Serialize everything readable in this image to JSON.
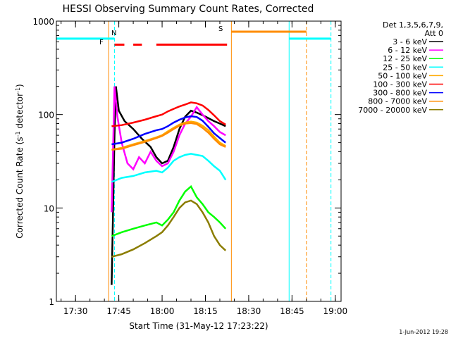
{
  "chart_data": {
    "type": "line",
    "title": "HESSI Observing Summary Count Rates, Corrected",
    "xlabel": "Start Time (31-May-12 17:23:22)",
    "ylabel_main": "Corrected Count Rate (s",
    "ylabel_sup1": "-1",
    "ylabel_mid": " detector",
    "ylabel_sup2": "-1",
    "ylabel_end": ")",
    "y_scale": "log",
    "ylim": [
      1,
      1000
    ],
    "y_ticks": [
      {
        "v": 1,
        "label": "1"
      },
      {
        "v": 10,
        "label": "10"
      },
      {
        "v": 100,
        "label": "100"
      },
      {
        "v": 1000,
        "label": "1000"
      }
    ],
    "xlim": [
      "17:23:22",
      "19:02:00"
    ],
    "x_ticks": [
      "17:30",
      "17:45",
      "18:00",
      "18:15",
      "18:30",
      "18:45",
      "19:00"
    ],
    "legend_header": [
      "Det 1,3,5,6,7,9,",
      "Att 0"
    ],
    "series": [
      {
        "name": "3 - 6 keV",
        "color": "#000000",
        "points": [
          [
            "17:42:30",
            1.5
          ],
          [
            "17:43:30",
            60
          ],
          [
            "17:44:00",
            200
          ],
          [
            "17:45:00",
            110
          ],
          [
            "17:47:00",
            85
          ],
          [
            "17:50:00",
            70
          ],
          [
            "17:53:00",
            55
          ],
          [
            "17:56:00",
            45
          ],
          [
            "17:58:00",
            35
          ],
          [
            "18:00:00",
            30
          ],
          [
            "18:02:00",
            32
          ],
          [
            "18:04:00",
            45
          ],
          [
            "18:06:00",
            70
          ],
          [
            "18:08:00",
            95
          ],
          [
            "18:10:00",
            110
          ],
          [
            "18:12:00",
            105
          ],
          [
            "18:15:00",
            95
          ],
          [
            "18:18:00",
            85
          ],
          [
            "18:20:00",
            80
          ],
          [
            "18:22:00",
            75
          ]
        ]
      },
      {
        "name": "6 - 12 keV",
        "color": "#ff00ff",
        "points": [
          [
            "17:42:30",
            9
          ],
          [
            "17:43:30",
            200
          ],
          [
            "17:44:30",
            95
          ],
          [
            "17:46:00",
            50
          ],
          [
            "17:48:00",
            30
          ],
          [
            "17:50:00",
            26
          ],
          [
            "17:52:00",
            35
          ],
          [
            "17:54:00",
            30
          ],
          [
            "17:56:00",
            40
          ],
          [
            "17:58:00",
            32
          ],
          [
            "18:00:00",
            28
          ],
          [
            "18:02:00",
            30
          ],
          [
            "18:04:00",
            40
          ],
          [
            "18:06:00",
            60
          ],
          [
            "18:08:00",
            80
          ],
          [
            "18:10:00",
            95
          ],
          [
            "18:12:00",
            120
          ],
          [
            "18:14:00",
            100
          ],
          [
            "18:16:00",
            85
          ],
          [
            "18:18:00",
            75
          ],
          [
            "18:20:00",
            65
          ],
          [
            "18:22:00",
            60
          ]
        ]
      },
      {
        "name": "12 - 25 keV",
        "color": "#00ff00",
        "points": [
          [
            "17:42:30",
            5
          ],
          [
            "17:46:00",
            5.5
          ],
          [
            "17:50:00",
            6
          ],
          [
            "17:54:00",
            6.5
          ],
          [
            "17:58:00",
            7
          ],
          [
            "18:00:00",
            6.5
          ],
          [
            "18:02:00",
            7.5
          ],
          [
            "18:04:00",
            9
          ],
          [
            "18:06:00",
            12
          ],
          [
            "18:08:00",
            15
          ],
          [
            "18:10:00",
            17
          ],
          [
            "18:12:00",
            13
          ],
          [
            "18:14:00",
            11
          ],
          [
            "18:16:00",
            9
          ],
          [
            "18:18:00",
            8
          ],
          [
            "18:20:00",
            7
          ],
          [
            "18:22:00",
            6
          ]
        ]
      },
      {
        "name": "25 - 50 keV",
        "color": "#00ffff",
        "points": [
          [
            "17:42:30",
            19
          ],
          [
            "17:46:00",
            21
          ],
          [
            "17:50:00",
            22
          ],
          [
            "17:54:00",
            24
          ],
          [
            "17:58:00",
            25
          ],
          [
            "18:00:00",
            24
          ],
          [
            "18:02:00",
            27
          ],
          [
            "18:04:00",
            32
          ],
          [
            "18:06:00",
            35
          ],
          [
            "18:08:00",
            37
          ],
          [
            "18:10:00",
            38
          ],
          [
            "18:12:00",
            37
          ],
          [
            "18:14:00",
            36
          ],
          [
            "18:16:00",
            32
          ],
          [
            "18:18:00",
            28
          ],
          [
            "18:20:00",
            25
          ],
          [
            "18:22:00",
            20
          ]
        ]
      },
      {
        "name": "50 - 100 keV",
        "color": "#ffaa00",
        "points": [
          [
            "17:42:30",
            42
          ],
          [
            "17:46:00",
            44
          ],
          [
            "17:50:00",
            48
          ],
          [
            "17:54:00",
            52
          ],
          [
            "17:58:00",
            57
          ],
          [
            "18:00:00",
            60
          ],
          [
            "18:02:00",
            66
          ],
          [
            "18:04:00",
            72
          ],
          [
            "18:06:00",
            78
          ],
          [
            "18:08:00",
            82
          ],
          [
            "18:10:00",
            84
          ],
          [
            "18:12:00",
            82
          ],
          [
            "18:14:00",
            76
          ],
          [
            "18:16:00",
            68
          ],
          [
            "18:18:00",
            58
          ],
          [
            "18:20:00",
            50
          ],
          [
            "18:22:00",
            46
          ]
        ]
      },
      {
        "name": "100 - 300 keV",
        "color": "#ff0000",
        "points": [
          [
            "17:42:30",
            75
          ],
          [
            "17:46:00",
            77
          ],
          [
            "17:50:00",
            82
          ],
          [
            "17:54:00",
            88
          ],
          [
            "17:58:00",
            96
          ],
          [
            "18:00:00",
            100
          ],
          [
            "18:02:00",
            108
          ],
          [
            "18:04:00",
            115
          ],
          [
            "18:06:00",
            122
          ],
          [
            "18:08:00",
            128
          ],
          [
            "18:10:00",
            135
          ],
          [
            "18:12:00",
            132
          ],
          [
            "18:14:00",
            125
          ],
          [
            "18:16:00",
            112
          ],
          [
            "18:18:00",
            98
          ],
          [
            "18:20:00",
            85
          ],
          [
            "18:22:00",
            78
          ]
        ]
      },
      {
        "name": "300 - 800 keV",
        "color": "#0000ff",
        "points": [
          [
            "17:42:30",
            48
          ],
          [
            "17:46:00",
            50
          ],
          [
            "17:50:00",
            55
          ],
          [
            "17:54:00",
            62
          ],
          [
            "17:58:00",
            68
          ],
          [
            "18:00:00",
            70
          ],
          [
            "18:02:00",
            75
          ],
          [
            "18:04:00",
            82
          ],
          [
            "18:06:00",
            88
          ],
          [
            "18:08:00",
            93
          ],
          [
            "18:10:00",
            96
          ],
          [
            "18:12:00",
            94
          ],
          [
            "18:14:00",
            86
          ],
          [
            "18:16:00",
            74
          ],
          [
            "18:18:00",
            63
          ],
          [
            "18:20:00",
            56
          ],
          [
            "18:22:00",
            50
          ]
        ]
      },
      {
        "name": "800 - 7000 keV",
        "color": "#ff8c00",
        "points": [
          [
            "17:42:30",
            42
          ],
          [
            "17:46:00",
            43
          ],
          [
            "17:50:00",
            47
          ],
          [
            "17:54:00",
            51
          ],
          [
            "17:58:00",
            56
          ],
          [
            "18:00:00",
            59
          ],
          [
            "18:02:00",
            64
          ],
          [
            "18:04:00",
            70
          ],
          [
            "18:06:00",
            76
          ],
          [
            "18:08:00",
            80
          ],
          [
            "18:10:00",
            81
          ],
          [
            "18:12:00",
            79
          ],
          [
            "18:14:00",
            72
          ],
          [
            "18:16:00",
            64
          ],
          [
            "18:18:00",
            55
          ],
          [
            "18:20:00",
            48
          ],
          [
            "18:22:00",
            45
          ]
        ]
      },
      {
        "name": "7000 - 20000 keV",
        "color": "#8b7d00",
        "points": [
          [
            "17:42:30",
            3
          ],
          [
            "17:46:00",
            3.2
          ],
          [
            "17:50:00",
            3.6
          ],
          [
            "17:54:00",
            4.2
          ],
          [
            "17:58:00",
            5
          ],
          [
            "18:00:00",
            5.5
          ],
          [
            "18:02:00",
            6.5
          ],
          [
            "18:04:00",
            8
          ],
          [
            "18:06:00",
            10
          ],
          [
            "18:08:00",
            11.5
          ],
          [
            "18:10:00",
            12
          ],
          [
            "18:12:00",
            11
          ],
          [
            "18:14:00",
            9
          ],
          [
            "18:16:00",
            7
          ],
          [
            "18:18:00",
            5
          ],
          [
            "18:20:00",
            4
          ],
          [
            "18:22:00",
            3.5
          ]
        ]
      }
    ],
    "markers": {
      "night": {
        "label": "N",
        "color": "#00ffff"
      },
      "flare": {
        "label": "F",
        "color": "#ff0000"
      },
      "saa": {
        "label": "S",
        "color": "#ff8c00"
      }
    },
    "flag_bars": [
      {
        "color": "#00ffff",
        "x": [
          "17:23:22",
          "17:43:30"
        ],
        "y": 650
      },
      {
        "color": "#ff0000",
        "x": [
          "17:43:30",
          "17:47:00"
        ],
        "y": 560,
        "dashed": true
      },
      {
        "color": "#ff0000",
        "x": [
          "17:50:00",
          "17:53:00"
        ],
        "y": 560,
        "dashed": true
      },
      {
        "color": "#ff0000",
        "x": [
          "17:58:00",
          "18:22:30"
        ],
        "y": 560
      },
      {
        "color": "#ff8c00",
        "x": [
          "18:24:00",
          "18:50:00"
        ],
        "y": 770
      },
      {
        "color": "#00ffff",
        "x": [
          "18:44:00",
          "18:58:30"
        ],
        "y": 650
      }
    ],
    "vlines": [
      {
        "color": "#00ffff",
        "x": "17:23:22"
      },
      {
        "color": "#ff8c00",
        "x": "17:41:30"
      },
      {
        "color": "#00ffff",
        "x": "17:43:30",
        "dashed": true
      },
      {
        "color": "#ff8c00",
        "x": "18:24:00"
      },
      {
        "color": "#00ffff",
        "x": "18:44:00"
      },
      {
        "color": "#ff8c00",
        "x": "18:50:00",
        "dashed": true
      },
      {
        "color": "#00ffff",
        "x": "18:58:30",
        "dashed": true
      }
    ],
    "grid": false,
    "legend_position": "right"
  },
  "timestamp": "1-Jun-2012 19:28"
}
